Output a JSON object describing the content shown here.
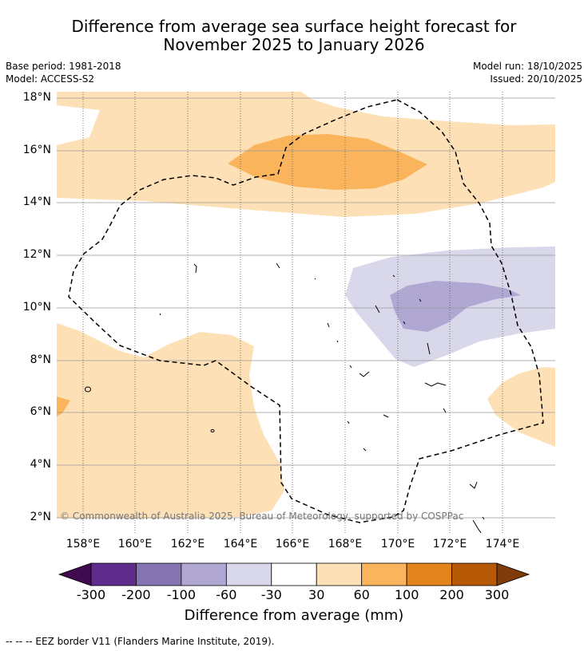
{
  "title_line1": "Difference from average sea surface height forecast for",
  "title_line2": "November 2025 to January 2026",
  "base_period": "Base period: 1981-2018",
  "model": "Model: ACCESS-S2",
  "model_run": "Model run: 18/10/2025",
  "issued": "Issued: 20/10/2025",
  "latitudes": [
    "18°N",
    "16°N",
    "14°N",
    "12°N",
    "10°N",
    "8°N",
    "6°N",
    "4°N",
    "2°N"
  ],
  "longitudes": [
    "158°E",
    "160°E",
    "162°E",
    "164°E",
    "166°E",
    "168°E",
    "170°E",
    "172°E",
    "174°E"
  ],
  "credit": "© Commonwealth of Australia 2025, Bureau of Meteorology, supported by COSPPac",
  "colorbar": {
    "labels": [
      "-300",
      "-200",
      "-100",
      "-60",
      "-30",
      "30",
      "60",
      "100",
      "200",
      "300"
    ],
    "colors": [
      "#3f0a50",
      "#5e2a8c",
      "#8673b2",
      "#b0a8d2",
      "#d8d8ea",
      "#ffffff",
      "#fde0b6",
      "#f9b45c",
      "#e3831c",
      "#b65907",
      "#7f3b08"
    ],
    "title": "Difference from average (mm)"
  },
  "legend_footer": "--  --  -- EEZ border V11 (Flanders Marine Institute, 2019)."
}
